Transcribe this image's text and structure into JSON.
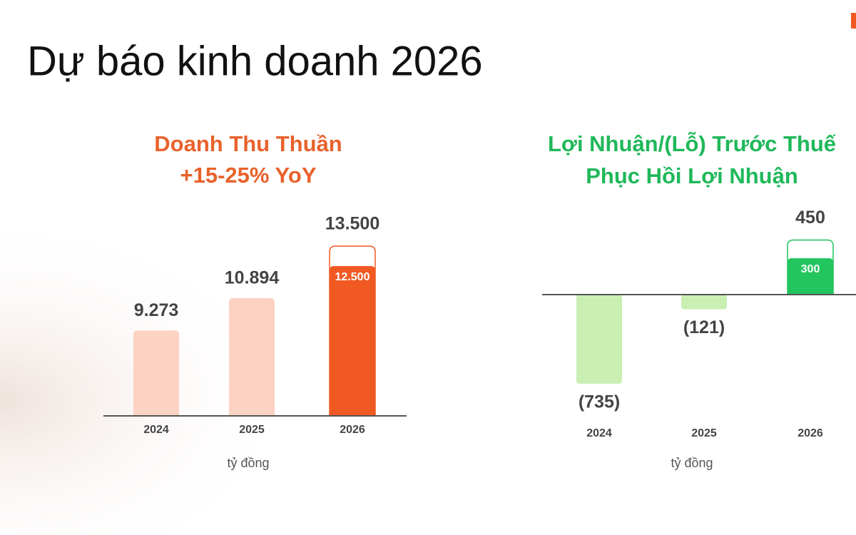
{
  "title": "Dự báo kinh doanh 2026",
  "chart_data": [
    {
      "type": "bar",
      "title": "Doanh Thu Thuần",
      "subtitle": "+15-25% YoY",
      "title_color": "#e8622c",
      "categories": [
        "2024",
        "2025",
        "2026"
      ],
      "values": [
        9273,
        10894,
        12500
      ],
      "value_labels": [
        "9.273",
        "10.894",
        "12.500"
      ],
      "upper_values": [
        null,
        null,
        13500
      ],
      "upper_value_labels": [
        null,
        null,
        "13.500"
      ],
      "colors": [
        "#fcd2c2",
        "#fcd2c2",
        "#f05a22"
      ],
      "x_label": "tỷ đồng",
      "ylim": [
        5000,
        15000
      ]
    },
    {
      "type": "bar",
      "title": "Lợi Nhuận/(Lỗ) Trước Thuế",
      "subtitle": "Phục Hồi Lợi Nhuận",
      "title_color": "#1fb85a",
      "categories": [
        "2024",
        "2025",
        "2026"
      ],
      "values": [
        -735,
        -121,
        300
      ],
      "value_labels": [
        "(735)",
        "(121)",
        "300"
      ],
      "upper_values": [
        null,
        null,
        450
      ],
      "upper_value_labels": [
        null,
        null,
        "450"
      ],
      "colors": [
        "#c9efb3",
        "#c9efb3",
        "#22c55e"
      ],
      "x_label": "tỷ đồng",
      "ylim": [
        -850,
        650
      ]
    }
  ]
}
